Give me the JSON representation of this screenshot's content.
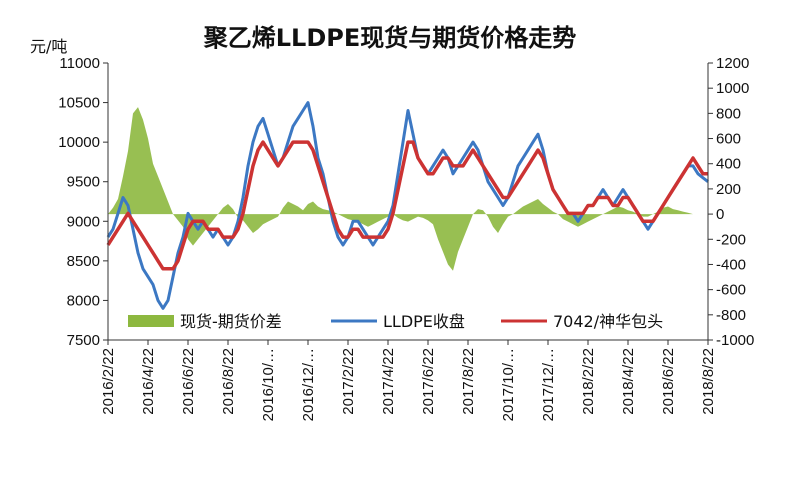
{
  "chart_data": {
    "type": "line",
    "title": "聚乙烯LLDPE现货与期货价格走势",
    "ylabel": "元/吨",
    "ylim": [
      7500,
      11000
    ],
    "y2lim": [
      -1000,
      1200
    ],
    "yticks": [
      "11000",
      "10500",
      "10000",
      "9500",
      "9000",
      "8500",
      "8000",
      "7500"
    ],
    "y2ticks": [
      "1200",
      "1000",
      "800",
      "600",
      "400",
      "200",
      "0",
      "-200",
      "-400",
      "-600",
      "-800",
      "-1000"
    ],
    "xticks": [
      "2016/2/22",
      "2016/4/22",
      "2016/6/22",
      "2016/8/22",
      "2016/10/…",
      "2016/12/…",
      "2017/2/22",
      "2017/4/22",
      "2017/6/22",
      "2017/8/22",
      "2017/10/…",
      "2017/12/…",
      "2018/2/22",
      "2018/4/22",
      "2018/6/22",
      "2018/8/22"
    ],
    "x": [
      0,
      1,
      2,
      3,
      4,
      5,
      6,
      7,
      8,
      9,
      10,
      11,
      12,
      13,
      14,
      15,
      16,
      17,
      18,
      19,
      20,
      21,
      22,
      23,
      24,
      25,
      26,
      27,
      28,
      29,
      30,
      31,
      32,
      33,
      34,
      35,
      36,
      37,
      38,
      39,
      40,
      41,
      42,
      43,
      44,
      45,
      46,
      47,
      48,
      49,
      50,
      51,
      52,
      53,
      54,
      55,
      56,
      57,
      58,
      59,
      60,
      61,
      62,
      63,
      64,
      65,
      66,
      67,
      68,
      69,
      70,
      71,
      72,
      73,
      74,
      75,
      76,
      77,
      78,
      79,
      80,
      81,
      82,
      83,
      84,
      85,
      86,
      87,
      88,
      89,
      90,
      91,
      92,
      93,
      94,
      95,
      96,
      97,
      98,
      99,
      100,
      101,
      102,
      103,
      104,
      105,
      106,
      107,
      108,
      109,
      110,
      111,
      112,
      113,
      114,
      115,
      116,
      117,
      118,
      119,
      120
    ],
    "series": [
      {
        "name": "现货-期货价差",
        "axis": "right",
        "kind": "area",
        "color": "#8db83f",
        "values": [
          0,
          50,
          120,
          300,
          500,
          800,
          850,
          750,
          600,
          400,
          300,
          200,
          100,
          0,
          -50,
          -100,
          -200,
          -250,
          -200,
          -150,
          -100,
          -50,
          0,
          50,
          80,
          40,
          -30,
          -50,
          -100,
          -150,
          -120,
          -80,
          -60,
          -40,
          -20,
          50,
          100,
          80,
          60,
          30,
          80,
          100,
          60,
          40,
          30,
          20,
          0,
          -20,
          -40,
          -50,
          -60,
          -80,
          -100,
          -80,
          -60,
          -40,
          -20,
          0,
          -30,
          -50,
          -60,
          -40,
          -20,
          -30,
          -50,
          -80,
          -200,
          -300,
          -400,
          -450,
          -300,
          -200,
          -100,
          0,
          40,
          30,
          -20,
          -100,
          -150,
          -80,
          -20,
          0,
          30,
          60,
          80,
          100,
          120,
          80,
          50,
          20,
          0,
          -40,
          -60,
          -80,
          -100,
          -80,
          -60,
          -40,
          -20,
          0,
          20,
          40,
          60,
          50,
          30,
          20,
          0,
          -20,
          -20,
          0,
          20,
          50,
          60,
          40,
          30,
          20,
          10,
          0,
          0,
          0,
          0
        ]
      },
      {
        "name": "LLDPE收盘",
        "axis": "left",
        "kind": "line",
        "color": "#3c78c3",
        "values": [
          8800,
          8900,
          9100,
          9300,
          9200,
          8900,
          8600,
          8400,
          8300,
          8200,
          8000,
          7900,
          8000,
          8300,
          8600,
          8800,
          9100,
          9000,
          8900,
          9000,
          8900,
          8800,
          8900,
          8800,
          8700,
          8800,
          9000,
          9300,
          9700,
          10000,
          10200,
          10300,
          10100,
          9900,
          9700,
          9800,
          10000,
          10200,
          10300,
          10400,
          10500,
          10200,
          9800,
          9600,
          9300,
          9000,
          8800,
          8700,
          8800,
          9000,
          9000,
          8900,
          8800,
          8700,
          8800,
          8900,
          9000,
          9200,
          9600,
          10000,
          10400,
          10100,
          9800,
          9700,
          9600,
          9700,
          9800,
          9900,
          9800,
          9600,
          9700,
          9800,
          9900,
          10000,
          9900,
          9700,
          9500,
          9400,
          9300,
          9200,
          9300,
          9500,
          9700,
          9800,
          9900,
          10000,
          10100,
          9900,
          9600,
          9400,
          9300,
          9200,
          9100,
          9100,
          9000,
          9100,
          9200,
          9200,
          9300,
          9400,
          9300,
          9200,
          9300,
          9400,
          9300,
          9200,
          9100,
          9000,
          8900,
          9000,
          9100,
          9200,
          9300,
          9400,
          9500,
          9600,
          9700,
          9700,
          9600,
          9550,
          9500
        ]
      },
      {
        "name": "7042/神华包头",
        "axis": "left",
        "kind": "line",
        "color": "#cc3333",
        "values": [
          8700,
          8800,
          8900,
          9000,
          9100,
          9000,
          8900,
          8800,
          8700,
          8600,
          8500,
          8400,
          8400,
          8400,
          8500,
          8700,
          8900,
          9000,
          9000,
          9000,
          8900,
          8900,
          8900,
          8800,
          8800,
          8800,
          8900,
          9100,
          9400,
          9700,
          9900,
          10000,
          9900,
          9800,
          9700,
          9800,
          9900,
          10000,
          10000,
          10000,
          10000,
          9900,
          9700,
          9500,
          9300,
          9100,
          8900,
          8800,
          8800,
          8900,
          8900,
          8800,
          8800,
          8800,
          8800,
          8800,
          8900,
          9100,
          9400,
          9700,
          10000,
          10000,
          9800,
          9700,
          9600,
          9600,
          9700,
          9800,
          9800,
          9700,
          9700,
          9700,
          9800,
          9900,
          9800,
          9700,
          9600,
          9500,
          9400,
          9300,
          9300,
          9400,
          9500,
          9600,
          9700,
          9800,
          9900,
          9800,
          9600,
          9400,
          9300,
          9200,
          9100,
          9100,
          9100,
          9100,
          9200,
          9200,
          9300,
          9300,
          9300,
          9200,
          9200,
          9300,
          9300,
          9200,
          9100,
          9000,
          9000,
          9000,
          9100,
          9200,
          9300,
          9400,
          9500,
          9600,
          9700,
          9800,
          9700,
          9600,
          9600
        ]
      }
    ],
    "legend": {
      "placement": "bottom",
      "items": [
        "现货-期货价差",
        "LLDPE收盘",
        "7042/神华包头"
      ]
    },
    "grid": false
  }
}
